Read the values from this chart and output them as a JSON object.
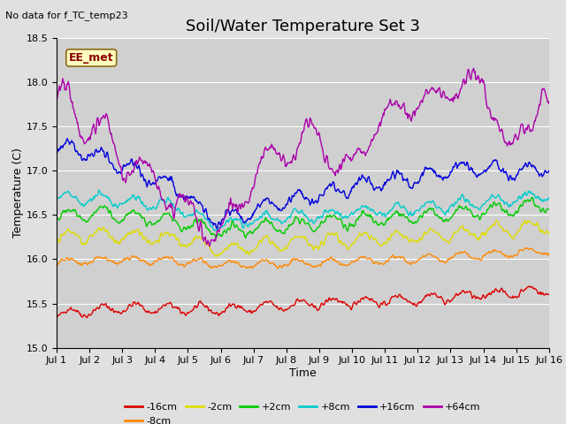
{
  "title": "Soil/Water Temperature Set 3",
  "xlabel": "Time",
  "ylabel": "Temperature (C)",
  "top_label": "No data for f_TC_temp23",
  "annotation": "EE_met",
  "ylim": [
    15.0,
    18.5
  ],
  "yticks": [
    15.0,
    15.5,
    16.0,
    16.5,
    17.0,
    17.5,
    18.0,
    18.5
  ],
  "xtick_labels": [
    "Jul 1",
    "Jul 2",
    "Jul 3",
    "Jul 4",
    "Jul 5",
    "Jul 6",
    "Jul 7",
    "Jul 8",
    "Jul 9",
    "Jul 10",
    "Jul 11",
    "Jul 12",
    "Jul 13",
    "Jul 14",
    "Jul 15",
    "Jul 16"
  ],
  "colors": {
    "-16cm": "#dd0000",
    "-8cm": "#ff8800",
    "-2cm": "#dddd00",
    "+2cm": "#00cc00",
    "+8cm": "#00cccc",
    "+16cm": "#0000dd",
    "+64cm": "#aa00aa"
  },
  "legend_order": [
    "-16cm",
    "-8cm",
    "-2cm",
    "+2cm",
    "+8cm",
    "+16cm",
    "+64cm"
  ],
  "bg_color": "#e0e0e0",
  "plot_bg_color": "#d0d0d0",
  "title_fontsize": 13,
  "axis_label_fontsize": 9,
  "tick_fontsize": 8,
  "linewidth": 1.0
}
